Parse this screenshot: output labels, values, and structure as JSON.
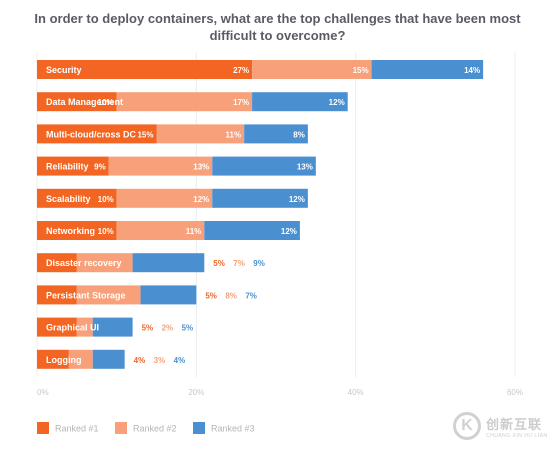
{
  "chart_data": {
    "type": "bar",
    "orientation": "horizontal",
    "stacked": true,
    "title": "In order to deploy containers, what are the top challenges that have been most difficult to overcome?",
    "categories": [
      "Security",
      "Data Management",
      "Multi-cloud/cross DC",
      "Reliability",
      "Scalability",
      "Networking",
      "Disaster recovery",
      "Persistant Storage",
      "Graphical UI",
      "Logging"
    ],
    "series": [
      {
        "name": "Ranked #1",
        "color": "#f26522",
        "values": [
          27,
          10,
          15,
          9,
          10,
          10,
          5,
          5,
          5,
          4
        ]
      },
      {
        "name": "Ranked #2",
        "color": "#f7a07a",
        "values": [
          15,
          17,
          11,
          13,
          12,
          11,
          7,
          8,
          2,
          3
        ]
      },
      {
        "name": "Ranked #3",
        "color": "#4a90d0",
        "values": [
          14,
          12,
          8,
          13,
          12,
          12,
          9,
          7,
          5,
          4
        ]
      }
    ],
    "value_labels": [
      [
        "27%",
        "15%",
        "14%"
      ],
      [
        "10%",
        "17%",
        "12%"
      ],
      [
        "15%",
        "11%",
        "8%"
      ],
      [
        "9%",
        "13%",
        "13%"
      ],
      [
        "10%",
        "12%",
        "12%"
      ],
      [
        "10%",
        "11%",
        "12%"
      ],
      [
        "5%",
        "7%",
        "9%"
      ],
      [
        "5%",
        "8%",
        "7%"
      ],
      [
        "5%",
        "2%",
        "5%"
      ],
      [
        "4%",
        "3%",
        "4%"
      ]
    ],
    "x_ticks": [
      "0%",
      "20%",
      "40%",
      "60%"
    ],
    "xlim": [
      0,
      60
    ],
    "xlabel": "",
    "ylabel": "",
    "grid": true,
    "legend_position": "bottom-left"
  },
  "watermark": {
    "mark": "K",
    "cn": "创新互联",
    "en": "CHUANG XIN HU LIAN"
  }
}
